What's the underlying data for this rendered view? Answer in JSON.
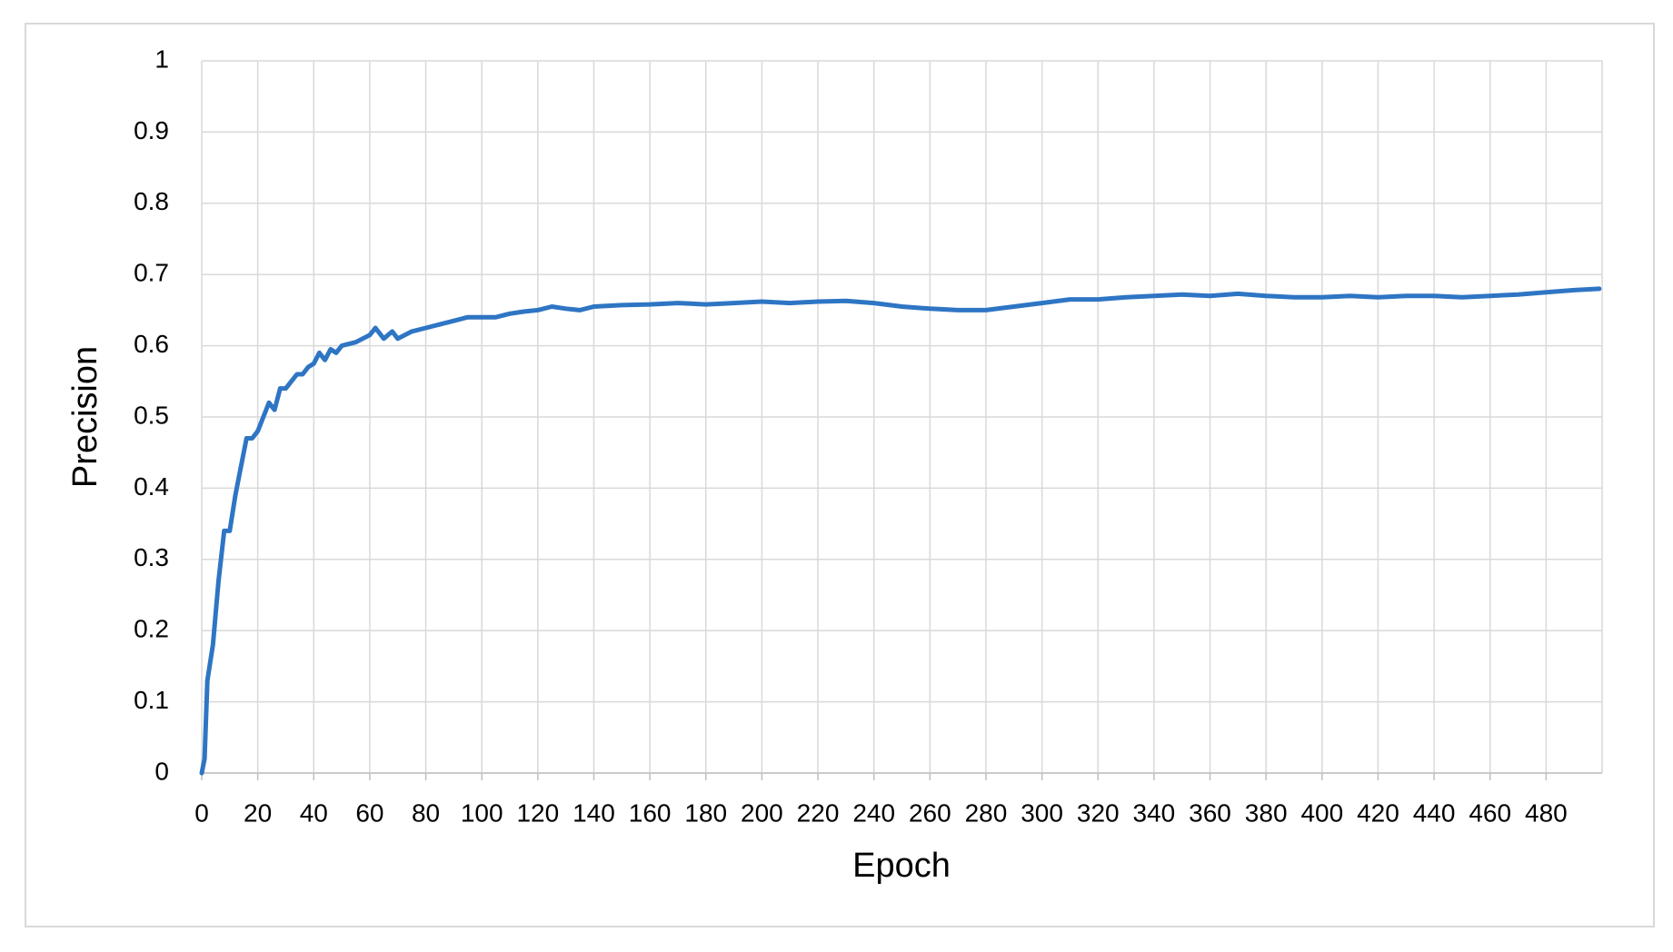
{
  "chart_data": {
    "type": "line",
    "x_label": "Epoch",
    "y_label": "Precision",
    "color": "#2e75c4",
    "grid": true,
    "x": [
      0,
      1,
      2,
      4,
      6,
      8,
      10,
      12,
      14,
      16,
      18,
      20,
      22,
      24,
      26,
      28,
      30,
      32,
      34,
      36,
      38,
      40,
      42,
      44,
      46,
      48,
      50,
      55,
      60,
      62,
      65,
      68,
      70,
      75,
      80,
      85,
      90,
      95,
      100,
      105,
      110,
      115,
      120,
      125,
      130,
      135,
      140,
      150,
      160,
      170,
      180,
      190,
      200,
      210,
      220,
      230,
      240,
      250,
      260,
      270,
      280,
      290,
      300,
      310,
      320,
      330,
      340,
      350,
      360,
      370,
      380,
      390,
      400,
      410,
      420,
      430,
      440,
      450,
      460,
      470,
      480,
      490,
      499
    ],
    "values": [
      0,
      0.02,
      0.13,
      0.18,
      0.27,
      0.34,
      0.34,
      0.39,
      0.43,
      0.47,
      0.47,
      0.48,
      0.5,
      0.52,
      0.51,
      0.54,
      0.54,
      0.55,
      0.56,
      0.56,
      0.57,
      0.575,
      0.59,
      0.58,
      0.595,
      0.59,
      0.6,
      0.605,
      0.615,
      0.625,
      0.61,
      0.62,
      0.61,
      0.62,
      0.625,
      0.63,
      0.635,
      0.64,
      0.64,
      0.64,
      0.645,
      0.648,
      0.65,
      0.655,
      0.652,
      0.65,
      0.655,
      0.657,
      0.658,
      0.66,
      0.658,
      0.66,
      0.662,
      0.66,
      0.662,
      0.663,
      0.66,
      0.655,
      0.652,
      0.65,
      0.65,
      0.655,
      0.66,
      0.665,
      0.665,
      0.668,
      0.67,
      0.672,
      0.67,
      0.673,
      0.67,
      0.668,
      0.668,
      0.67,
      0.668,
      0.67,
      0.67,
      0.668,
      0.67,
      0.672,
      0.675,
      0.678,
      0.68
    ],
    "xlim": [
      0,
      500
    ],
    "xticks": [
      0,
      20,
      40,
      60,
      80,
      100,
      120,
      140,
      160,
      180,
      200,
      220,
      240,
      260,
      280,
      300,
      320,
      340,
      360,
      380,
      400,
      420,
      440,
      460,
      480
    ],
    "ylim": [
      0,
      1
    ],
    "yticks": [
      0,
      0.1,
      0.2,
      0.3,
      0.4,
      0.5,
      0.6,
      0.7,
      0.8,
      0.9,
      1
    ]
  }
}
